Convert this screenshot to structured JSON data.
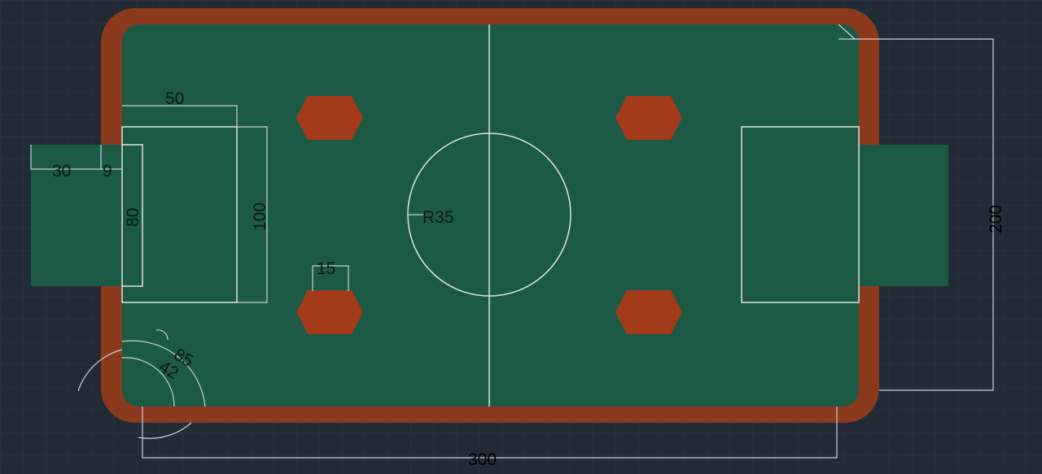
{
  "colors": {
    "background": "#222a36",
    "grid": "#2c3544",
    "field": "#1c5a45",
    "border": "#8b3a1e",
    "obstacle": "#a33a1a",
    "line": "#d8e8e0",
    "dim_line": "#c8d0d8",
    "dim_text": "#0a1a10"
  },
  "dimensions": {
    "goal_area_width": "50",
    "goal_depth": "30",
    "goal_offset": "9",
    "goal_width": "80",
    "goal_area_height": "100",
    "center_radius": "R35",
    "obstacle_size": "15",
    "corner_outer": "85",
    "corner_inner": "42",
    "field_height": "200",
    "field_length": "300"
  }
}
